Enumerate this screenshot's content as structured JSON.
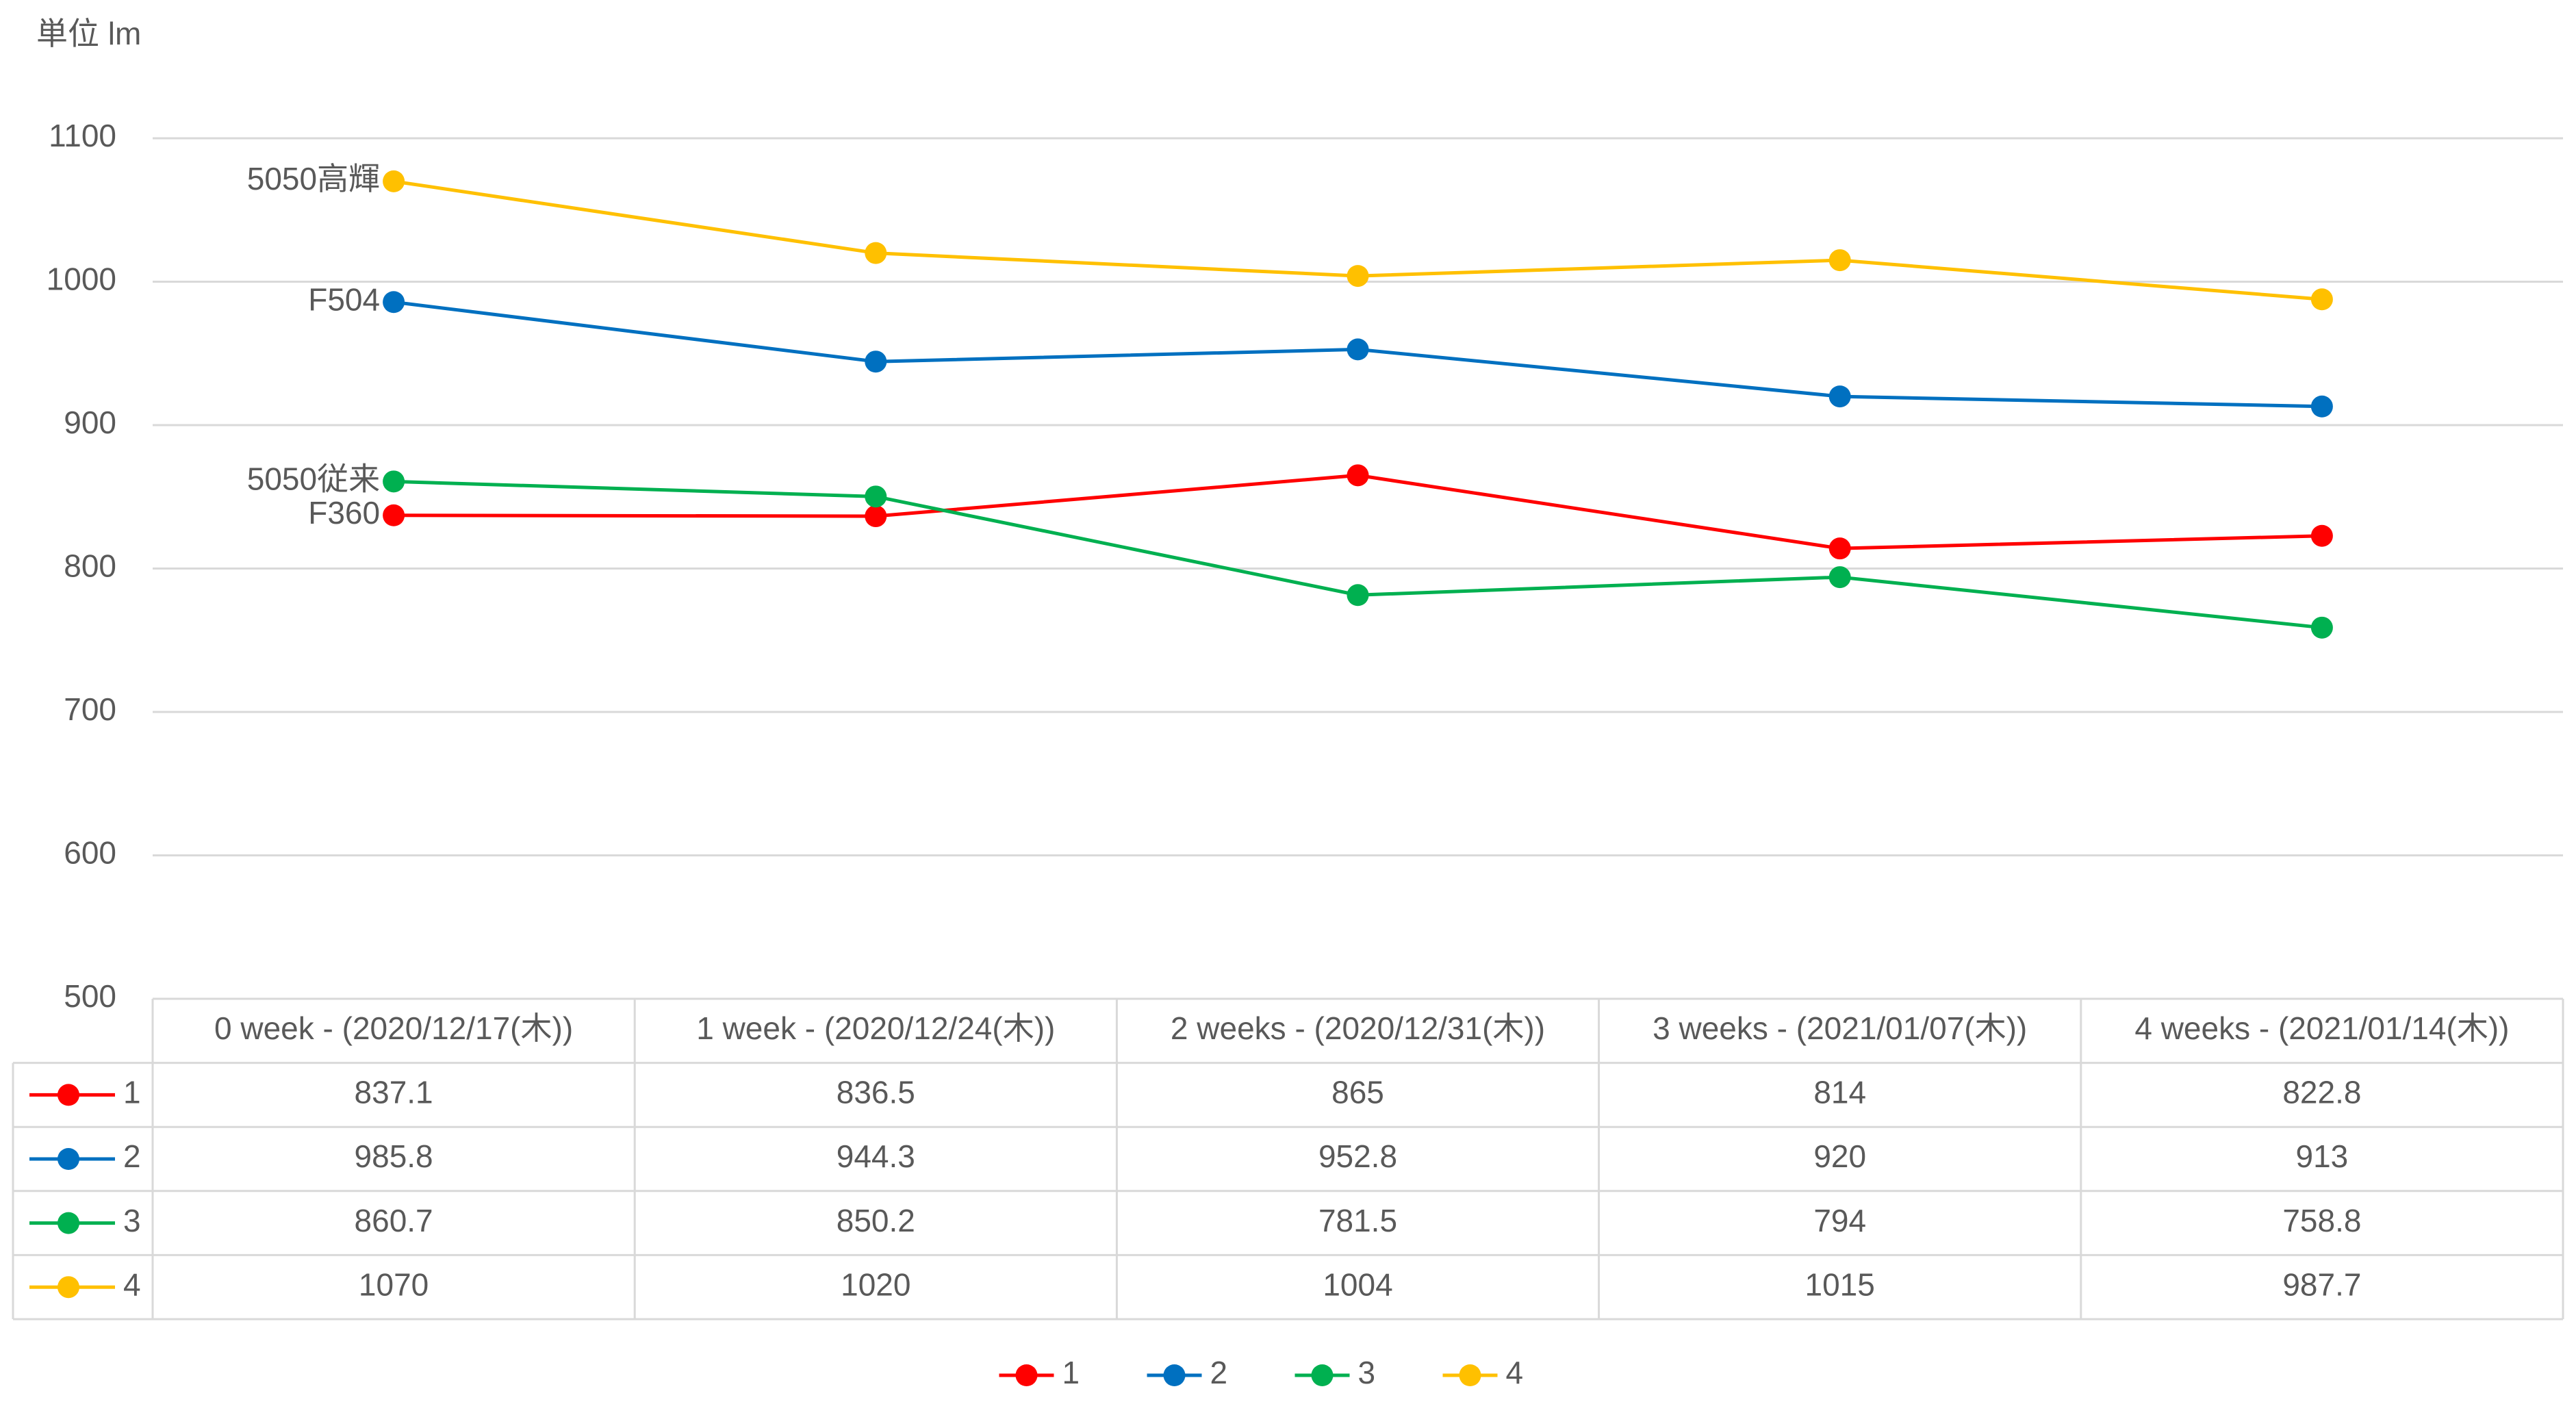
{
  "chart_data": {
    "type": "line",
    "title": "単位 lm",
    "categories": [
      "0 week - (2020/12/17(木))",
      "1 week - (2020/12/24(木))",
      "2 weeks - (2020/12/31(木))",
      "3 weeks - (2021/01/07(木))",
      "4 weeks - (2021/01/14(木))"
    ],
    "series": [
      {
        "name": "1",
        "label": "F360",
        "color": "#ff0000",
        "values": [
          837.1,
          836.5,
          865,
          814,
          822.8
        ]
      },
      {
        "name": "2",
        "label": "F504",
        "color": "#0070c0",
        "values": [
          985.8,
          944.3,
          952.8,
          920,
          913
        ]
      },
      {
        "name": "3",
        "label": "5050従来",
        "color": "#00b050",
        "values": [
          860.7,
          850.2,
          781.5,
          794,
          758.8
        ]
      },
      {
        "name": "4",
        "label": "5050高輝",
        "color": "#ffc000",
        "values": [
          1070,
          1020,
          1004,
          1015,
          987.7
        ]
      }
    ],
    "ylim": [
      500,
      1100
    ],
    "yticks": [
      500,
      600,
      700,
      800,
      900,
      1000,
      1100
    ],
    "grid": true,
    "legend": "bottom"
  }
}
